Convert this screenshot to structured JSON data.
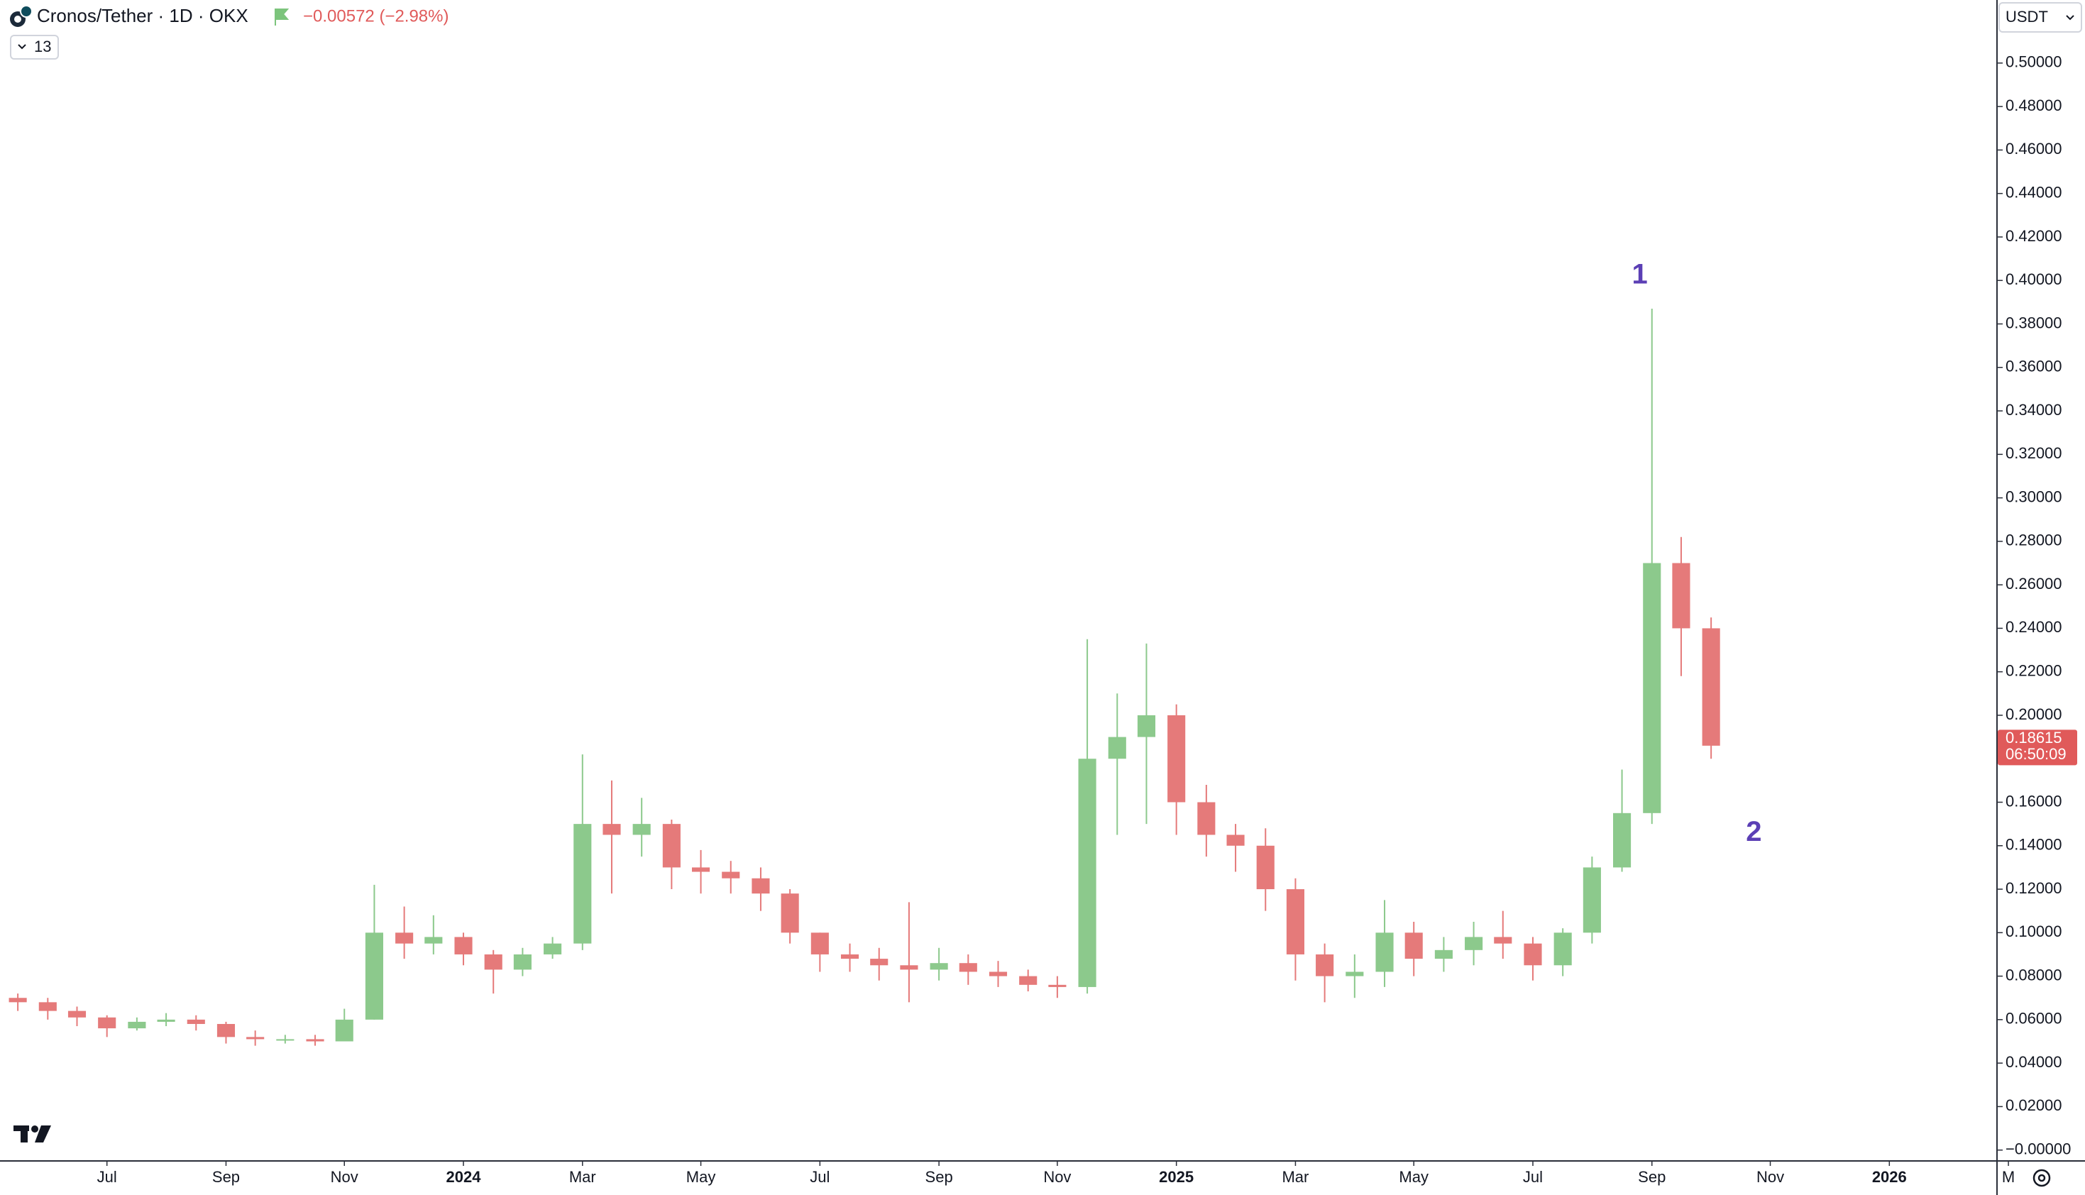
{
  "chart_data": {
    "type": "candlestick",
    "title": "Cronos/Tether · 1D · OKX",
    "change": "−0.00572 (−2.98%)",
    "indicator_count": "13",
    "currency": "USDT",
    "up_color": "#8cc98c",
    "down_color": "#e57a7a",
    "grid": false,
    "x": [
      2023.375,
      2023.417,
      2023.458,
      2023.5,
      2023.542,
      2023.583,
      2023.625,
      2023.667,
      2023.708,
      2023.75,
      2023.792,
      2023.833,
      2023.875,
      2023.917,
      2023.958,
      2024.0,
      2024.042,
      2024.083,
      2024.125,
      2024.167,
      2024.208,
      2024.25,
      2024.292,
      2024.333,
      2024.375,
      2024.417,
      2024.458,
      2024.5,
      2024.542,
      2024.583,
      2024.625,
      2024.667,
      2024.708,
      2024.75,
      2024.792,
      2024.833,
      2024.875,
      2024.917,
      2024.958,
      2025.0,
      2025.042,
      2025.083,
      2025.125,
      2025.167,
      2025.208,
      2025.25,
      2025.292,
      2025.333,
      2025.375,
      2025.417,
      2025.458,
      2025.5,
      2025.542,
      2025.583,
      2025.625,
      2025.667,
      2025.708,
      2025.75
    ],
    "open": [
      0.07,
      0.068,
      0.064,
      0.061,
      0.056,
      0.059,
      0.06,
      0.058,
      0.052,
      0.051,
      0.051,
      0.05,
      0.06,
      0.1,
      0.095,
      0.098,
      0.09,
      0.083,
      0.09,
      0.095,
      0.15,
      0.145,
      0.15,
      0.13,
      0.128,
      0.125,
      0.118,
      0.1,
      0.09,
      0.088,
      0.085,
      0.083,
      0.086,
      0.082,
      0.08,
      0.076,
      0.075,
      0.18,
      0.19,
      0.2,
      0.16,
      0.145,
      0.14,
      0.12,
      0.09,
      0.08,
      0.082,
      0.1,
      0.088,
      0.092,
      0.098,
      0.095,
      0.085,
      0.1,
      0.13,
      0.155,
      0.27,
      0.24
    ],
    "high": [
      0.072,
      0.07,
      0.066,
      0.062,
      0.061,
      0.063,
      0.062,
      0.059,
      0.055,
      0.053,
      0.053,
      0.065,
      0.122,
      0.112,
      0.108,
      0.1,
      0.092,
      0.093,
      0.098,
      0.182,
      0.17,
      0.162,
      0.152,
      0.138,
      0.133,
      0.13,
      0.12,
      0.1,
      0.095,
      0.093,
      0.114,
      0.093,
      0.09,
      0.087,
      0.083,
      0.08,
      0.235,
      0.21,
      0.233,
      0.205,
      0.168,
      0.15,
      0.148,
      0.125,
      0.095,
      0.09,
      0.115,
      0.105,
      0.098,
      0.105,
      0.11,
      0.098,
      0.102,
      0.135,
      0.175,
      0.387,
      0.282,
      0.245
    ],
    "low": [
      0.064,
      0.06,
      0.057,
      0.052,
      0.055,
      0.057,
      0.055,
      0.049,
      0.048,
      0.049,
      0.048,
      0.05,
      0.06,
      0.088,
      0.09,
      0.085,
      0.072,
      0.08,
      0.088,
      0.092,
      0.118,
      0.135,
      0.12,
      0.118,
      0.118,
      0.11,
      0.095,
      0.082,
      0.082,
      0.078,
      0.068,
      0.078,
      0.076,
      0.075,
      0.073,
      0.07,
      0.072,
      0.145,
      0.15,
      0.145,
      0.135,
      0.128,
      0.11,
      0.078,
      0.068,
      0.07,
      0.075,
      0.08,
      0.082,
      0.085,
      0.088,
      0.078,
      0.08,
      0.095,
      0.128,
      0.15,
      0.218,
      0.18
    ],
    "close": [
      0.068,
      0.064,
      0.061,
      0.056,
      0.059,
      0.06,
      0.058,
      0.052,
      0.051,
      0.051,
      0.05,
      0.06,
      0.1,
      0.095,
      0.098,
      0.09,
      0.083,
      0.09,
      0.095,
      0.15,
      0.145,
      0.15,
      0.13,
      0.128,
      0.125,
      0.118,
      0.1,
      0.09,
      0.088,
      0.085,
      0.083,
      0.086,
      0.082,
      0.08,
      0.076,
      0.075,
      0.18,
      0.19,
      0.2,
      0.16,
      0.145,
      0.14,
      0.12,
      0.09,
      0.08,
      0.082,
      0.1,
      0.088,
      0.092,
      0.098,
      0.095,
      0.085,
      0.1,
      0.13,
      0.155,
      0.27,
      0.24,
      0.186
    ],
    "xlim": [
      2023.35,
      2026.15
    ],
    "ylim": [
      -0.005,
      0.529
    ],
    "xticks": [
      {
        "value": 2023.5,
        "label": "Jul"
      },
      {
        "value": 2023.667,
        "label": "Sep"
      },
      {
        "value": 2023.833,
        "label": "Nov"
      },
      2024,
      {
        "value": 2024.167,
        "label": "Mar"
      },
      {
        "value": 2024.333,
        "label": "May"
      },
      {
        "value": 2024.5,
        "label": "Jul"
      },
      {
        "value": 2024.667,
        "label": "Sep"
      },
      {
        "value": 2024.833,
        "label": "Nov"
      },
      2025,
      {
        "value": 2025.167,
        "label": "Mar"
      },
      {
        "value": 2025.333,
        "label": "May"
      },
      {
        "value": 2025.5,
        "label": "Jul"
      },
      {
        "value": 2025.667,
        "label": "Sep"
      },
      {
        "value": 2025.833,
        "label": "Nov"
      },
      2026,
      {
        "value": 2026.167,
        "label": "M"
      }
    ],
    "yticks": [
      {
        "value": 0,
        "label": "−0.00000"
      },
      {
        "value": 0.02,
        "label": "0.02000"
      },
      {
        "value": 0.04,
        "label": "0.04000"
      },
      {
        "value": 0.06,
        "label": "0.06000"
      },
      {
        "value": 0.08,
        "label": "0.08000"
      },
      {
        "value": 0.1,
        "label": "0.10000"
      },
      {
        "value": 0.12,
        "label": "0.12000"
      },
      {
        "value": 0.14,
        "label": "0.14000"
      },
      {
        "value": 0.16,
        "label": "0.16000"
      },
      {
        "value": 0.2,
        "label": "0.20000"
      },
      {
        "value": 0.22,
        "label": "0.22000"
      },
      {
        "value": 0.24,
        "label": "0.24000"
      },
      {
        "value": 0.26,
        "label": "0.26000"
      },
      {
        "value": 0.28,
        "label": "0.28000"
      },
      {
        "value": 0.3,
        "label": "0.30000"
      },
      {
        "value": 0.32,
        "label": "0.32000"
      },
      {
        "value": 0.34,
        "label": "0.34000"
      },
      {
        "value": 0.36,
        "label": "0.36000"
      },
      {
        "value": 0.38,
        "label": "0.38000"
      },
      {
        "value": 0.4,
        "label": "0.40000"
      },
      {
        "value": 0.42,
        "label": "0.42000"
      },
      {
        "value": 0.44,
        "label": "0.44000"
      },
      {
        "value": 0.46,
        "label": "0.46000"
      },
      {
        "value": 0.48,
        "label": "0.48000"
      },
      {
        "value": 0.5,
        "label": "0.50000"
      }
    ],
    "last_price": {
      "value": 0.18615,
      "label": "0.18615",
      "countdown": "06:50:09",
      "color": "#e05a5a"
    },
    "annotations": [
      {
        "text": "1",
        "x": 2025.65,
        "y": 0.402,
        "color": "#5b3fb5"
      },
      {
        "text": "2",
        "x": 2025.81,
        "y": 0.1457,
        "color": "#5b3fb5"
      }
    ]
  }
}
